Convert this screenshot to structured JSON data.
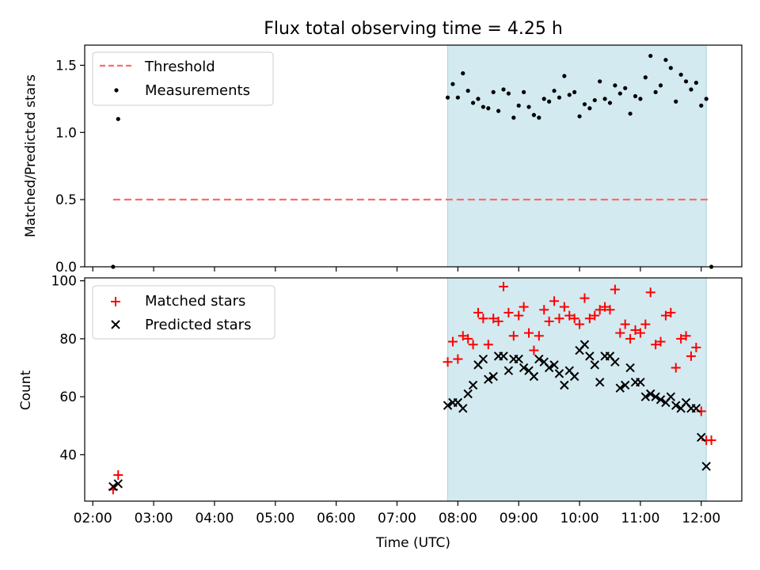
{
  "title": "Flux total observing time = 4.25 h",
  "colors": {
    "threshold": "#ff6b6b",
    "measurement": "#000000",
    "matched": "#ff0000",
    "predicted": "#000000",
    "span_fill": "#d3eaf0",
    "span_edge": "#a8d4dc"
  },
  "chart_data": [
    {
      "type": "scatter",
      "ylabel": "Matched/Predicted stars",
      "ylim": [
        0.0,
        1.65
      ],
      "yticks": [
        "0.0",
        "0.5",
        "1.0",
        "1.5"
      ],
      "xlim": [
        "01:52",
        "12:40"
      ],
      "legend": {
        "position": "upper-left",
        "entries": [
          "Threshold",
          "Measurements"
        ]
      },
      "shaded_span": [
        "07:50",
        "12:05"
      ],
      "threshold": {
        "name": "Threshold",
        "value": 0.5,
        "x_range": [
          "02:20",
          "12:10"
        ]
      },
      "series": [
        {
          "name": "Measurements",
          "marker": "dot",
          "points": [
            [
              "02:20",
              0.0
            ],
            [
              "02:25",
              1.1
            ],
            [
              "07:50",
              1.26
            ],
            [
              "07:55",
              1.36
            ],
            [
              "08:00",
              1.26
            ],
            [
              "08:05",
              1.44
            ],
            [
              "08:10",
              1.31
            ],
            [
              "08:15",
              1.22
            ],
            [
              "08:20",
              1.25
            ],
            [
              "08:25",
              1.19
            ],
            [
              "08:30",
              1.18
            ],
            [
              "08:35",
              1.3
            ],
            [
              "08:40",
              1.16
            ],
            [
              "08:45",
              1.32
            ],
            [
              "08:50",
              1.29
            ],
            [
              "08:55",
              1.11
            ],
            [
              "09:00",
              1.2
            ],
            [
              "09:05",
              1.3
            ],
            [
              "09:10",
              1.19
            ],
            [
              "09:15",
              1.13
            ],
            [
              "09:20",
              1.11
            ],
            [
              "09:25",
              1.25
            ],
            [
              "09:30",
              1.23
            ],
            [
              "09:35",
              1.31
            ],
            [
              "09:40",
              1.26
            ],
            [
              "09:45",
              1.42
            ],
            [
              "09:50",
              1.28
            ],
            [
              "09:55",
              1.3
            ],
            [
              "10:00",
              1.12
            ],
            [
              "10:05",
              1.21
            ],
            [
              "10:10",
              1.18
            ],
            [
              "10:15",
              1.24
            ],
            [
              "10:20",
              1.38
            ],
            [
              "10:25",
              1.25
            ],
            [
              "10:30",
              1.22
            ],
            [
              "10:35",
              1.35
            ],
            [
              "10:40",
              1.29
            ],
            [
              "10:45",
              1.33
            ],
            [
              "10:50",
              1.14
            ],
            [
              "10:55",
              1.27
            ],
            [
              "11:00",
              1.25
            ],
            [
              "11:05",
              1.41
            ],
            [
              "11:10",
              1.57
            ],
            [
              "11:15",
              1.3
            ],
            [
              "11:20",
              1.35
            ],
            [
              "11:25",
              1.54
            ],
            [
              "11:30",
              1.48
            ],
            [
              "11:35",
              1.23
            ],
            [
              "11:40",
              1.43
            ],
            [
              "11:45",
              1.38
            ],
            [
              "11:50",
              1.32
            ],
            [
              "11:55",
              1.37
            ],
            [
              "12:00",
              1.2
            ],
            [
              "12:05",
              1.25
            ],
            [
              "12:10",
              0.0
            ]
          ]
        }
      ]
    },
    {
      "type": "scatter",
      "xlabel": "Time (UTC)",
      "ylabel": "Count",
      "ylim": [
        24,
        101
      ],
      "yticks": [
        "40",
        "60",
        "80",
        "100"
      ],
      "xlim": [
        "01:52",
        "12:40"
      ],
      "xticks": [
        "02:00",
        "03:00",
        "04:00",
        "05:00",
        "06:00",
        "07:00",
        "08:00",
        "09:00",
        "10:00",
        "11:00",
        "12:00"
      ],
      "legend": {
        "position": "upper-left",
        "entries": [
          "Matched stars",
          "Predicted stars"
        ]
      },
      "shaded_span": [
        "07:50",
        "12:05"
      ],
      "series": [
        {
          "name": "Matched stars",
          "marker": "plus",
          "points": [
            [
              "02:20",
              28
            ],
            [
              "02:25",
              33
            ],
            [
              "07:50",
              72
            ],
            [
              "07:55",
              79
            ],
            [
              "08:00",
              73
            ],
            [
              "08:05",
              81
            ],
            [
              "08:10",
              80
            ],
            [
              "08:15",
              78
            ],
            [
              "08:20",
              89
            ],
            [
              "08:25",
              87
            ],
            [
              "08:30",
              78
            ],
            [
              "08:35",
              87
            ],
            [
              "08:40",
              86
            ],
            [
              "08:45",
              98
            ],
            [
              "08:50",
              89
            ],
            [
              "08:55",
              81
            ],
            [
              "09:00",
              88
            ],
            [
              "09:05",
              91
            ],
            [
              "09:10",
              82
            ],
            [
              "09:15",
              76
            ],
            [
              "09:20",
              81
            ],
            [
              "09:25",
              90
            ],
            [
              "09:30",
              86
            ],
            [
              "09:35",
              93
            ],
            [
              "09:40",
              87
            ],
            [
              "09:45",
              91
            ],
            [
              "09:50",
              88
            ],
            [
              "09:55",
              87
            ],
            [
              "10:00",
              85
            ],
            [
              "10:05",
              94
            ],
            [
              "10:10",
              87
            ],
            [
              "10:15",
              88
            ],
            [
              "10:20",
              90
            ],
            [
              "10:25",
              91
            ],
            [
              "10:30",
              90
            ],
            [
              "10:35",
              97
            ],
            [
              "10:40",
              82
            ],
            [
              "10:45",
              85
            ],
            [
              "10:50",
              80
            ],
            [
              "10:55",
              83
            ],
            [
              "11:00",
              82
            ],
            [
              "11:05",
              85
            ],
            [
              "11:10",
              96
            ],
            [
              "11:15",
              78
            ],
            [
              "11:20",
              79
            ],
            [
              "11:25",
              88
            ],
            [
              "11:30",
              89
            ],
            [
              "11:35",
              70
            ],
            [
              "11:40",
              80
            ],
            [
              "11:45",
              81
            ],
            [
              "11:50",
              74
            ],
            [
              "11:55",
              77
            ],
            [
              "12:00",
              55
            ],
            [
              "12:05",
              45
            ],
            [
              "12:10",
              45
            ]
          ]
        },
        {
          "name": "Predicted stars",
          "marker": "x",
          "points": [
            [
              "02:20",
              29
            ],
            [
              "02:25",
              30
            ],
            [
              "07:50",
              57
            ],
            [
              "07:55",
              58
            ],
            [
              "08:00",
              58
            ],
            [
              "08:05",
              56
            ],
            [
              "08:10",
              61
            ],
            [
              "08:15",
              64
            ],
            [
              "08:20",
              71
            ],
            [
              "08:25",
              73
            ],
            [
              "08:30",
              66
            ],
            [
              "08:35",
              67
            ],
            [
              "08:40",
              74
            ],
            [
              "08:45",
              74
            ],
            [
              "08:50",
              69
            ],
            [
              "08:55",
              73
            ],
            [
              "09:00",
              73
            ],
            [
              "09:05",
              70
            ],
            [
              "09:10",
              69
            ],
            [
              "09:15",
              67
            ],
            [
              "09:20",
              73
            ],
            [
              "09:25",
              72
            ],
            [
              "09:30",
              70
            ],
            [
              "09:35",
              71
            ],
            [
              "09:40",
              68
            ],
            [
              "09:45",
              64
            ],
            [
              "09:50",
              69
            ],
            [
              "09:55",
              67
            ],
            [
              "10:00",
              76
            ],
            [
              "10:05",
              78
            ],
            [
              "10:10",
              74
            ],
            [
              "10:15",
              71
            ],
            [
              "10:20",
              65
            ],
            [
              "10:25",
              74
            ],
            [
              "10:30",
              74
            ],
            [
              "10:35",
              72
            ],
            [
              "10:40",
              63
            ],
            [
              "10:45",
              64
            ],
            [
              "10:50",
              70
            ],
            [
              "10:55",
              65
            ],
            [
              "11:00",
              65
            ],
            [
              "11:05",
              60
            ],
            [
              "11:10",
              61
            ],
            [
              "11:15",
              60
            ],
            [
              "11:20",
              59
            ],
            [
              "11:25",
              58
            ],
            [
              "11:30",
              60
            ],
            [
              "11:35",
              57
            ],
            [
              "11:40",
              56
            ],
            [
              "11:45",
              58
            ],
            [
              "11:50",
              56
            ],
            [
              "11:55",
              56
            ],
            [
              "12:00",
              46
            ],
            [
              "12:05",
              36
            ]
          ]
        }
      ]
    }
  ]
}
